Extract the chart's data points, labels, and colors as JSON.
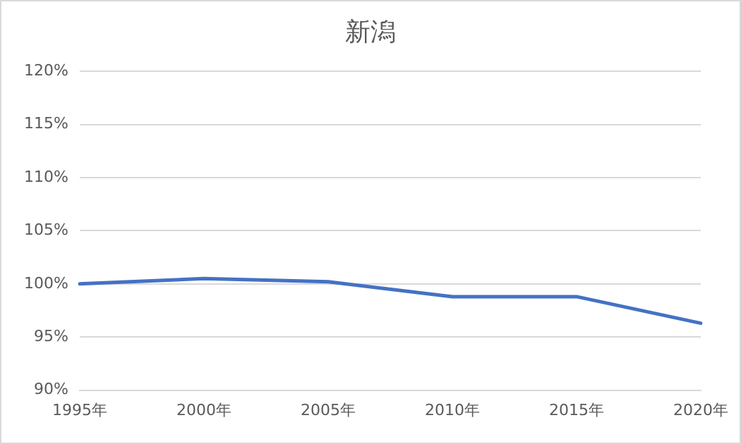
{
  "chart_data": {
    "type": "line",
    "title": "新潟",
    "categories": [
      "1995年",
      "2000年",
      "2005年",
      "2010年",
      "2015年",
      "2020年"
    ],
    "series": [
      {
        "color": "#4472c4",
        "values": [
          100,
          100.5,
          100.2,
          98.8,
          98.8,
          96.3
        ]
      }
    ],
    "ylim": [
      90,
      120
    ],
    "yticks": [
      {
        "value": 90,
        "label": "90%"
      },
      {
        "value": 95,
        "label": "95%"
      },
      {
        "value": 100,
        "label": "100%"
      },
      {
        "value": 105,
        "label": "105%"
      },
      {
        "value": 110,
        "label": "110%"
      },
      {
        "value": 115,
        "label": "115%"
      },
      {
        "value": 120,
        "label": "120%"
      }
    ],
    "grid": "y",
    "legend": false,
    "marker": "none",
    "line_style": "solid"
  }
}
